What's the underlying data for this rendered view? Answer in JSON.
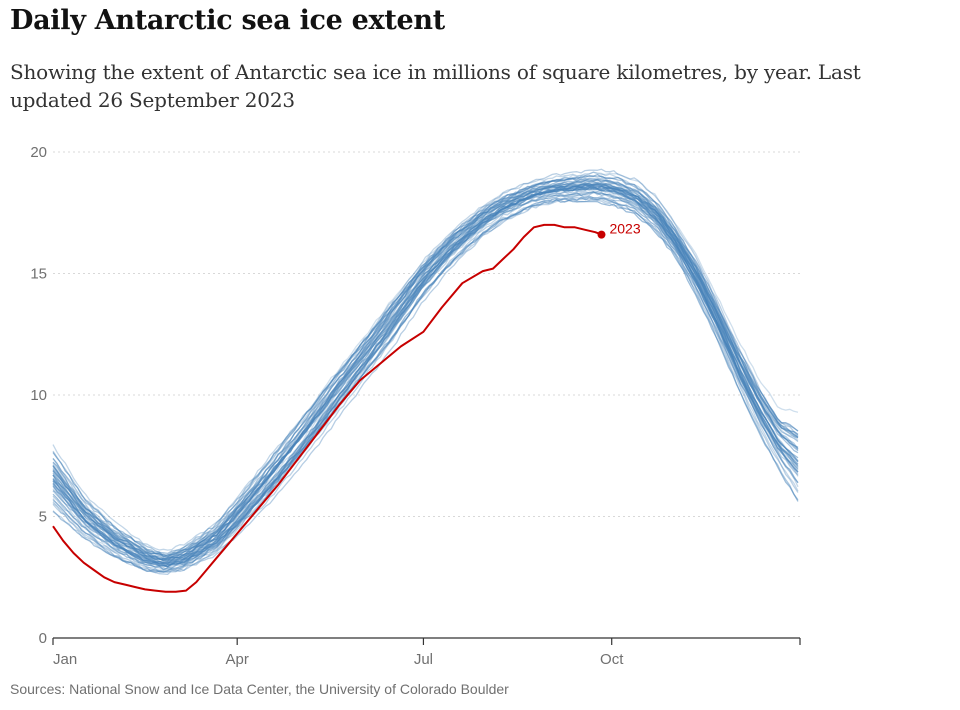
{
  "chart_data": {
    "type": "line",
    "title": "Daily Antarctic sea ice extent",
    "subtitle": "Showing the extent of Antarctic sea ice in millions of square kilometres, by year. Last updated 26 September 2023",
    "source": "Sources: National Snow and Ice Data Center, the University of Colorado Boulder",
    "xlabel": "",
    "ylabel": "",
    "xlim": [
      0,
      365
    ],
    "ylim": [
      0,
      20
    ],
    "yticks": [
      {
        "value": 0,
        "label": "0"
      },
      {
        "value": 5,
        "label": "5"
      },
      {
        "value": 10,
        "label": "10"
      },
      {
        "value": 15,
        "label": "15"
      },
      {
        "value": 20,
        "label": "20"
      }
    ],
    "xticks": [
      {
        "value": 0,
        "label": "Jan"
      },
      {
        "value": 90,
        "label": "Apr"
      },
      {
        "value": 181,
        "label": "Jul"
      },
      {
        "value": 273,
        "label": "Oct"
      },
      {
        "value": 365,
        "label": ""
      }
    ],
    "grid": true,
    "colors": {
      "historical": "#4682b9",
      "highlight": "#c70000",
      "grid": "#d8d8d8",
      "axis": "#333333"
    },
    "historical_band": {
      "description_years": "earlier years",
      "x": [
        0,
        15,
        30,
        45,
        55,
        65,
        80,
        90,
        105,
        120,
        135,
        150,
        165,
        181,
        195,
        210,
        220,
        235,
        245,
        255,
        265,
        275,
        285,
        295,
        305,
        315,
        325,
        335,
        345,
        355,
        365
      ],
      "low": [
        5.0,
        3.9,
        3.1,
        2.6,
        2.5,
        2.7,
        3.3,
        4.1,
        5.4,
        6.9,
        8.5,
        10.2,
        11.8,
        13.8,
        15.2,
        16.4,
        17.0,
        17.6,
        17.8,
        17.8,
        17.8,
        17.6,
        17.2,
        16.5,
        15.4,
        13.8,
        12.0,
        10.0,
        8.2,
        6.6,
        5.0
      ],
      "high": [
        8.0,
        6.0,
        4.8,
        3.9,
        3.6,
        3.9,
        4.8,
        5.8,
        7.4,
        9.0,
        10.7,
        12.3,
        14.0,
        15.7,
        16.9,
        17.9,
        18.4,
        18.9,
        19.1,
        19.2,
        19.3,
        19.2,
        18.9,
        18.2,
        17.0,
        15.7,
        14.0,
        12.3,
        10.7,
        9.5,
        9.4
      ]
    },
    "series": [
      {
        "name": "2023",
        "label": "2023",
        "x": [
          0,
          5,
          10,
          15,
          20,
          25,
          30,
          35,
          40,
          45,
          50,
          55,
          60,
          65,
          70,
          75,
          80,
          85,
          90,
          100,
          110,
          120,
          130,
          140,
          150,
          160,
          170,
          181,
          190,
          200,
          210,
          215,
          220,
          225,
          230,
          235,
          240,
          245,
          250,
          255,
          260,
          265,
          268
        ],
        "values": [
          4.6,
          4.0,
          3.5,
          3.1,
          2.8,
          2.5,
          2.3,
          2.2,
          2.1,
          2.0,
          1.95,
          1.9,
          1.9,
          1.95,
          2.3,
          2.8,
          3.3,
          3.8,
          4.3,
          5.3,
          6.3,
          7.4,
          8.5,
          9.6,
          10.6,
          11.3,
          12.0,
          12.6,
          13.6,
          14.6,
          15.1,
          15.2,
          15.6,
          16.0,
          16.5,
          16.9,
          17.0,
          17.0,
          16.9,
          16.9,
          16.8,
          16.7,
          16.6
        ]
      }
    ]
  }
}
